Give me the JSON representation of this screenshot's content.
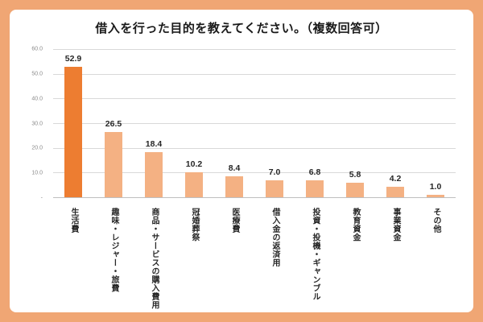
{
  "window": {
    "frame_background": "#F0A674",
    "card_background": "#FFFFFF"
  },
  "chart_data": {
    "type": "bar",
    "title": "借入を行った目的を教えてください。（複数回答可）",
    "categories": [
      "生活費",
      "趣味・レジャー・旅費",
      "商品・サービスの購入費用",
      "冠婚葬祭",
      "医療費",
      "借入金の返済用",
      "投資・投機・ギャンブル",
      "教育資金",
      "事業資金",
      "その他"
    ],
    "values": [
      52.9,
      26.5,
      18.4,
      10.2,
      8.4,
      7.0,
      6.8,
      5.8,
      4.2,
      1.0
    ],
    "value_labels": [
      "52.9",
      "26.5",
      "18.4",
      "10.2",
      "8.4",
      "7.0",
      "6.8",
      "5.8",
      "4.2",
      "1.0"
    ],
    "xlabel": "",
    "ylabel": "",
    "ylim": [
      0,
      60
    ],
    "ytick_values": [
      60,
      50,
      40,
      30,
      20,
      10,
      0
    ],
    "ytick_labels": [
      "60.0",
      "50.0",
      "40.0",
      "30.0",
      "20.0",
      "10.0",
      "-"
    ],
    "grid": true,
    "legend": "none",
    "highlight_index": 0,
    "colors": {
      "bar_default": "#F4B183",
      "bar_highlight": "#ED7D31",
      "gridline": "#D9D9D9",
      "axis_line": "#BFBFBF",
      "tick_label": "#8C8C8C",
      "value_label": "#262626",
      "category_label": "#262626",
      "title": "#1A1A1A"
    }
  }
}
